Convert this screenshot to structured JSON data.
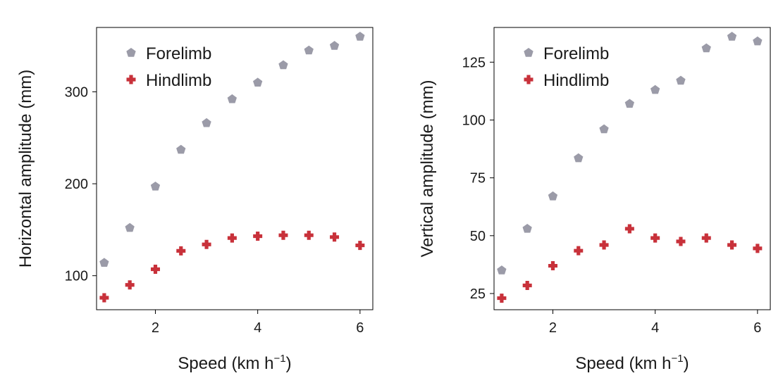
{
  "colors": {
    "forelimb": "#9b9ba8",
    "hindlimb": "#c8313a"
  },
  "chart_data": [
    {
      "type": "scatter",
      "xlabel": "Speed (km h",
      "xlabel_sup": "−1",
      "xlabel_end": ")",
      "ylabel": "Horizontal amplitude (mm)",
      "xlim": [
        0.85,
        6.25
      ],
      "ylim": [
        63,
        370
      ],
      "xticks": [
        2,
        4,
        6
      ],
      "yticks": [
        100,
        200,
        300
      ],
      "legend": "top-left",
      "grid": false,
      "series": [
        {
          "name": "Forelimb",
          "marker": "pentagon",
          "color": "#9b9ba8",
          "x": [
            1,
            1.5,
            2,
            2.5,
            3,
            3.5,
            4,
            4.5,
            5,
            5.5,
            6
          ],
          "y": [
            114,
            152,
            197,
            237,
            266,
            292,
            310,
            329,
            345,
            350,
            360
          ]
        },
        {
          "name": "Hindlimb",
          "marker": "plus",
          "color": "#c8313a",
          "x": [
            1,
            1.5,
            2,
            2.5,
            3,
            3.5,
            4,
            4.5,
            5,
            5.5,
            6
          ],
          "y": [
            76,
            90,
            107,
            127,
            134,
            141,
            143,
            144,
            144,
            142,
            133
          ]
        }
      ]
    },
    {
      "type": "scatter",
      "xlabel": "Speed (km h",
      "xlabel_sup": "−1",
      "xlabel_end": ")",
      "ylabel": "Vertical amplitude (mm)",
      "xlim": [
        0.85,
        6.25
      ],
      "ylim": [
        18,
        140
      ],
      "xticks": [
        2,
        4,
        6
      ],
      "yticks": [
        25,
        50,
        75,
        100,
        125
      ],
      "legend": "top-left",
      "grid": false,
      "series": [
        {
          "name": "Forelimb",
          "marker": "pentagon",
          "color": "#9b9ba8",
          "x": [
            1,
            1.5,
            2,
            2.5,
            3,
            3.5,
            4,
            4.5,
            5,
            5.5,
            6
          ],
          "y": [
            35,
            53,
            67,
            83.5,
            96,
            107,
            113,
            117,
            131,
            136,
            134
          ]
        },
        {
          "name": "Hindlimb",
          "marker": "plus",
          "color": "#c8313a",
          "x": [
            1,
            1.5,
            2,
            2.5,
            3,
            3.5,
            4,
            4.5,
            5,
            5.5,
            6
          ],
          "y": [
            23,
            28.5,
            37,
            43.5,
            46,
            53,
            49,
            47.5,
            49,
            46,
            44.5
          ]
        }
      ]
    }
  ]
}
